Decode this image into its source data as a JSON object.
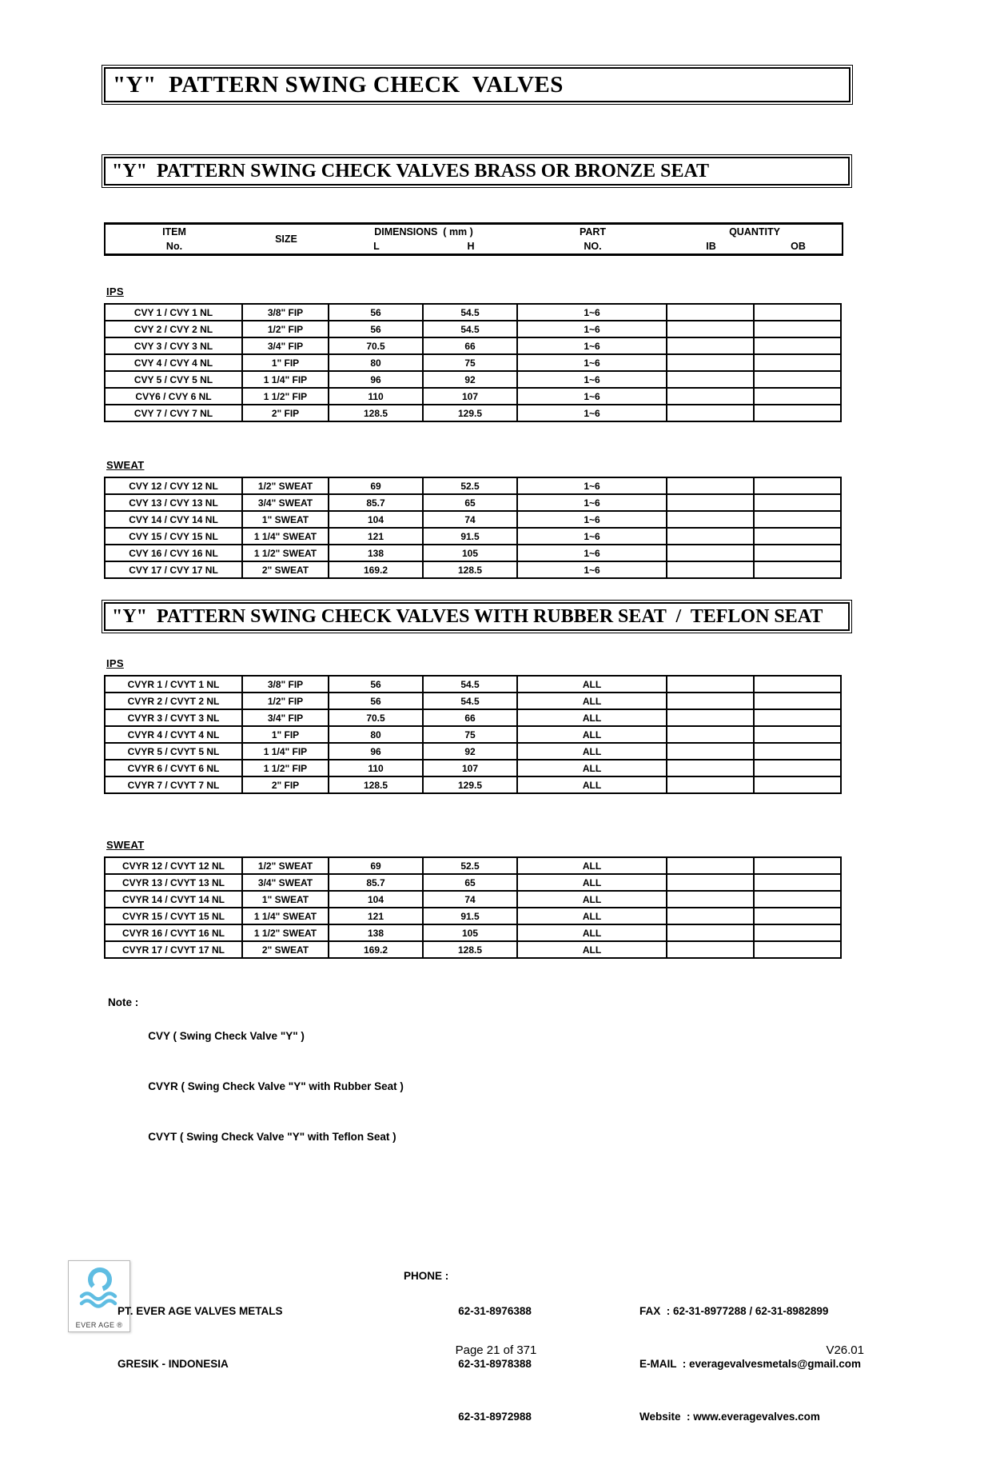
{
  "titles": {
    "main": "\"Y\"  PATTERN SWING CHECK  VALVES",
    "section1": "\"Y\"  PATTERN SWING CHECK VALVES BRASS OR BRONZE SEAT",
    "section2": "\"Y\"  PATTERN SWING CHECK VALVES WITH RUBBER SEAT  /  TEFLON SEAT"
  },
  "table_header": {
    "item_line1": "ITEM",
    "item_line2": "No.",
    "size": "SIZE",
    "dims_line1": "DIMENSIONS  ( mm )",
    "dim_l": "L",
    "dim_h": "H",
    "part_line1": "PART",
    "part_line2": "NO.",
    "qty_line1": "QUANTITY",
    "qty_ib": "IB",
    "qty_ob": "OB"
  },
  "section1": {
    "groups": [
      {
        "label": "IPS",
        "rows": [
          [
            "CVY 1 / CVY 1 NL",
            "3/8\" FIP",
            "56",
            "54.5",
            "1~6",
            "",
            ""
          ],
          [
            "CVY 2 / CVY 2 NL",
            "1/2\" FIP",
            "56",
            "54.5",
            "1~6",
            "",
            ""
          ],
          [
            "CVY 3 / CVY 3 NL",
            "3/4\" FIP",
            "70.5",
            "66",
            "1~6",
            "",
            ""
          ],
          [
            "CVY 4 / CVY 4 NL",
            "1\" FIP",
            "80",
            "75",
            "1~6",
            "",
            ""
          ],
          [
            "CVY 5 / CVY 5 NL",
            "1 1/4\" FIP",
            "96",
            "92",
            "1~6",
            "",
            ""
          ],
          [
            "CVY6 / CVY 6 NL",
            "1 1/2\" FIP",
            "110",
            "107",
            "1~6",
            "",
            ""
          ],
          [
            "CVY 7 / CVY 7 NL",
            "2\" FIP",
            "128.5",
            "129.5",
            "1~6",
            "",
            ""
          ]
        ]
      },
      {
        "label": "SWEAT",
        "rows": [
          [
            "CVY 12 / CVY 12 NL",
            "1/2\" SWEAT",
            "69",
            "52.5",
            "1~6",
            "",
            ""
          ],
          [
            "CVY 13 / CVY 13 NL",
            "3/4\" SWEAT",
            "85.7",
            "65",
            "1~6",
            "",
            ""
          ],
          [
            "CVY 14 / CVY 14 NL",
            "1\" SWEAT",
            "104",
            "74",
            "1~6",
            "",
            ""
          ],
          [
            "CVY 15 / CVY 15 NL",
            "1 1/4\" SWEAT",
            "121",
            "91.5",
            "1~6",
            "",
            ""
          ],
          [
            "CVY 16 / CVY 16 NL",
            "1 1/2\" SWEAT",
            "138",
            "105",
            "1~6",
            "",
            ""
          ],
          [
            "CVY 17 / CVY 17 NL",
            "2\" SWEAT",
            "169.2",
            "128.5",
            "1~6",
            "",
            ""
          ]
        ]
      }
    ]
  },
  "section2": {
    "groups": [
      {
        "label": "IPS",
        "rows": [
          [
            "CVYR 1 / CVYT 1 NL",
            "3/8\" FIP",
            "56",
            "54.5",
            "ALL",
            "",
            ""
          ],
          [
            "CVYR 2 / CVYT 2 NL",
            "1/2\" FIP",
            "56",
            "54.5",
            "ALL",
            "",
            ""
          ],
          [
            "CVYR 3 / CVYT 3 NL",
            "3/4\" FIP",
            "70.5",
            "66",
            "ALL",
            "",
            ""
          ],
          [
            "CVYR 4 / CVYT 4 NL",
            "1\" FIP",
            "80",
            "75",
            "ALL",
            "",
            ""
          ],
          [
            "CVYR 5 / CVYT 5 NL",
            "1 1/4\" FIP",
            "96",
            "92",
            "ALL",
            "",
            ""
          ],
          [
            "CVYR 6 / CVYT 6 NL",
            "1 1/2\" FIP",
            "110",
            "107",
            "ALL",
            "",
            ""
          ],
          [
            "CVYR 7 / CVYT 7 NL",
            "2\" FIP",
            "128.5",
            "129.5",
            "ALL",
            "",
            ""
          ]
        ]
      },
      {
        "label": "SWEAT",
        "rows": [
          [
            "CVYR 12 / CVYT 12 NL",
            "1/2\" SWEAT",
            "69",
            "52.5",
            "ALL",
            "",
            ""
          ],
          [
            "CVYR 13 / CVYT 13 NL",
            "3/4\" SWEAT",
            "85.7",
            "65",
            "ALL",
            "",
            ""
          ],
          [
            "CVYR 14 / CVYT 14 NL",
            "1\" SWEAT",
            "104",
            "74",
            "ALL",
            "",
            ""
          ],
          [
            "CVYR 15 / CVYT 15 NL",
            "1 1/4\" SWEAT",
            "121",
            "91.5",
            "ALL",
            "",
            ""
          ],
          [
            "CVYR 16 / CVYT 16 NL",
            "1 1/2\" SWEAT",
            "138",
            "105",
            "ALL",
            "",
            ""
          ],
          [
            "CVYR 17 / CVYT 17 NL",
            "2\" SWEAT",
            "169.2",
            "128.5",
            "ALL",
            "",
            ""
          ]
        ]
      }
    ]
  },
  "note": {
    "label": "Note :",
    "lines": [
      "CVY ( Swing Check Valve \"Y\" )",
      "CVYR ( Swing Check Valve \"Y\" with Rubber Seat )",
      "CVYT ( Swing Check Valve \"Y\" with Teflon Seat )"
    ]
  },
  "footer": {
    "logo_caption": "EVER AGE ®",
    "logo_color": "#5fbde2",
    "company_line1": "PT. EVER AGE VALVES METALS",
    "company_line2": "GRESIK - INDONESIA",
    "phone_label": "PHONE :",
    "phone_numbers": [
      "62-31-8976388",
      "62-31-8978388",
      "62-31-8972988"
    ],
    "fax_line": "FAX  : 62-31-8977288 / 62-31-8982899",
    "email_line": "E-MAIL  : everagevalvesmetals@gmail.com",
    "website_line": "Website  : www.everagevalves.com",
    "page_label": "Page 21 of 371",
    "version": "V26.01"
  }
}
